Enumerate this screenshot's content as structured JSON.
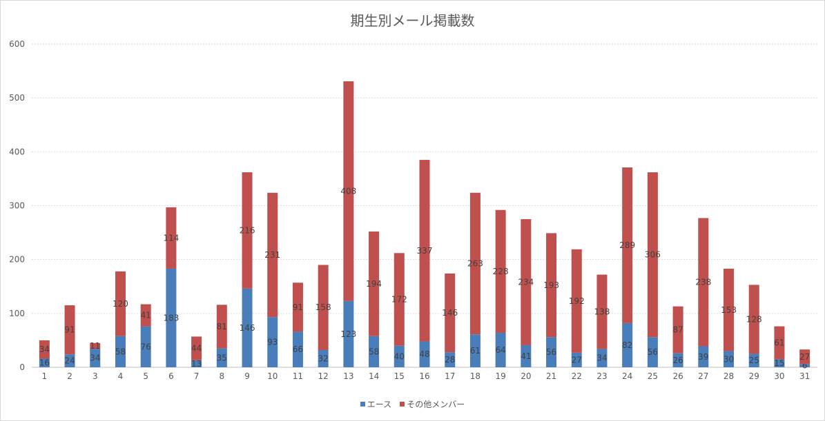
{
  "chart_data": {
    "type": "bar",
    "stacked": true,
    "title": "期生別メール掲載数",
    "xlabel": "",
    "ylabel": "",
    "ylim": [
      0,
      600
    ],
    "yticks": [
      0,
      100,
      200,
      300,
      400,
      500,
      600
    ],
    "grid": true,
    "legend": "bottom",
    "categories": [
      "1",
      "2",
      "3",
      "4",
      "5",
      "6",
      "7",
      "8",
      "9",
      "10",
      "11",
      "12",
      "13",
      "14",
      "15",
      "16",
      "17",
      "18",
      "19",
      "20",
      "21",
      "22",
      "23",
      "24",
      "25",
      "26",
      "27",
      "28",
      "29",
      "30",
      "31"
    ],
    "series": [
      {
        "name": "エース",
        "color": "#4a7ebb",
        "values": [
          16,
          24,
          34,
          58,
          76,
          183,
          13,
          35,
          146,
          93,
          66,
          32,
          123,
          58,
          40,
          48,
          28,
          61,
          64,
          41,
          56,
          27,
          34,
          82,
          56,
          26,
          39,
          30,
          25,
          15,
          6
        ]
      },
      {
        "name": "その他メンバー",
        "color": "#c0504d",
        "values": [
          34,
          91,
          11,
          120,
          41,
          114,
          44,
          81,
          216,
          231,
          91,
          158,
          408,
          194,
          172,
          337,
          146,
          263,
          228,
          234,
          193,
          192,
          138,
          289,
          306,
          87,
          238,
          153,
          128,
          61,
          27
        ]
      }
    ]
  }
}
